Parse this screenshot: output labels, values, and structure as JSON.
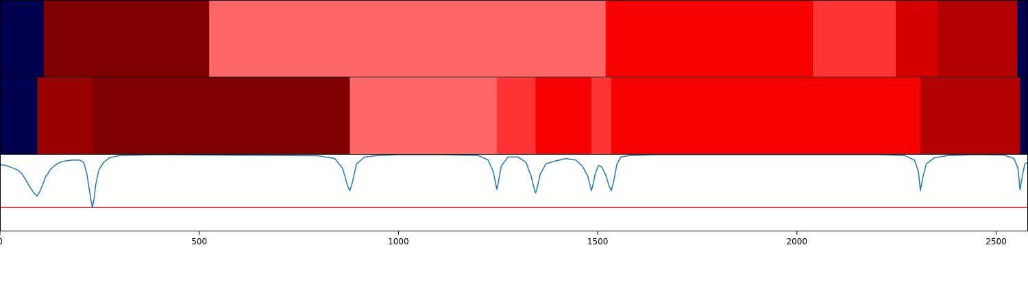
{
  "chart_data": [
    {
      "type": "heatmap",
      "x_range": [
        0,
        2580
      ],
      "segments": [
        {
          "start": 0,
          "end": 110,
          "color": "#000050"
        },
        {
          "start": 110,
          "end": 525,
          "color": "#800000"
        },
        {
          "start": 525,
          "end": 1520,
          "color": "#ff6666"
        },
        {
          "start": 1520,
          "end": 2040,
          "color": "#f70000"
        },
        {
          "start": 2040,
          "end": 2248,
          "color": "#ff3333"
        },
        {
          "start": 2248,
          "end": 2353,
          "color": "#d40000"
        },
        {
          "start": 2353,
          "end": 2553,
          "color": "#b30000"
        },
        {
          "start": 2553,
          "end": 2580,
          "color": "#000050"
        }
      ]
    },
    {
      "type": "heatmap",
      "x_range": [
        0,
        2580
      ],
      "segments": [
        {
          "start": 0,
          "end": 94,
          "color": "#000050"
        },
        {
          "start": 94,
          "end": 231,
          "color": "#990000"
        },
        {
          "start": 231,
          "end": 878,
          "color": "#800000"
        },
        {
          "start": 878,
          "end": 1247,
          "color": "#ff6666"
        },
        {
          "start": 1247,
          "end": 1344,
          "color": "#ff3333"
        },
        {
          "start": 1344,
          "end": 1484,
          "color": "#f70000"
        },
        {
          "start": 1484,
          "end": 1534,
          "color": "#ff3333"
        },
        {
          "start": 1534,
          "end": 2310,
          "color": "#f70000"
        },
        {
          "start": 2310,
          "end": 2560,
          "color": "#b30000"
        },
        {
          "start": 2560,
          "end": 2580,
          "color": "#000050"
        }
      ]
    },
    {
      "type": "line",
      "xlim": [
        0,
        2580
      ],
      "ylim": [
        0,
        1
      ],
      "xticks": [
        "0",
        "500",
        "1000",
        "1500",
        "2000",
        "2500"
      ],
      "xtick_values": [
        0,
        500,
        1000,
        1500,
        2000,
        2500
      ],
      "threshold": 0.31,
      "threshold_color": "#e02020",
      "line_color": "#1f77b4",
      "series": [
        {
          "x": [
            0,
            15,
            30,
            45,
            55,
            65,
            75,
            85,
            93,
            100,
            105,
            110,
            115,
            120,
            125,
            135,
            150,
            165,
            180,
            200,
            210,
            218,
            224,
            228,
            232,
            236,
            240,
            248,
            260,
            275,
            300,
            400,
            500,
            700,
            800,
            840,
            860,
            872,
            878,
            884,
            895,
            915,
            950,
            1000,
            1100,
            1200,
            1225,
            1238,
            1244,
            1247,
            1250,
            1258,
            1275,
            1300,
            1320,
            1333,
            1340,
            1344,
            1348,
            1356,
            1370,
            1395,
            1420,
            1445,
            1462,
            1475,
            1482,
            1484,
            1487,
            1494,
            1502,
            1510,
            1520,
            1528,
            1534,
            1540,
            1548,
            1558,
            1580,
            1650,
            1800,
            2000,
            2200,
            2270,
            2295,
            2305,
            2310,
            2315,
            2325,
            2345,
            2380,
            2450,
            2520,
            2545,
            2555,
            2560,
            2565,
            2572,
            2580
          ],
          "y": [
            0.87,
            0.86,
            0.83,
            0.8,
            0.75,
            0.67,
            0.58,
            0.5,
            0.46,
            0.52,
            0.58,
            0.65,
            0.72,
            0.75,
            0.8,
            0.85,
            0.9,
            0.92,
            0.93,
            0.93,
            0.9,
            0.75,
            0.55,
            0.42,
            0.31,
            0.42,
            0.6,
            0.8,
            0.9,
            0.96,
            0.99,
            1.0,
            0.995,
            0.99,
            0.985,
            0.95,
            0.82,
            0.6,
            0.53,
            0.63,
            0.88,
            0.97,
            0.99,
            1.0,
            1.0,
            0.99,
            0.93,
            0.78,
            0.62,
            0.55,
            0.62,
            0.85,
            0.97,
            0.97,
            0.9,
            0.72,
            0.57,
            0.5,
            0.56,
            0.75,
            0.88,
            0.92,
            0.95,
            0.93,
            0.85,
            0.72,
            0.58,
            0.53,
            0.58,
            0.75,
            0.86,
            0.84,
            0.74,
            0.6,
            0.53,
            0.65,
            0.87,
            0.97,
            0.99,
            1.0,
            1.0,
            1.0,
            1.0,
            0.99,
            0.93,
            0.78,
            0.53,
            0.68,
            0.88,
            0.96,
            0.99,
            1.0,
            0.995,
            0.95,
            0.82,
            0.54,
            0.7,
            0.88,
            0.9
          ]
        }
      ]
    }
  ]
}
